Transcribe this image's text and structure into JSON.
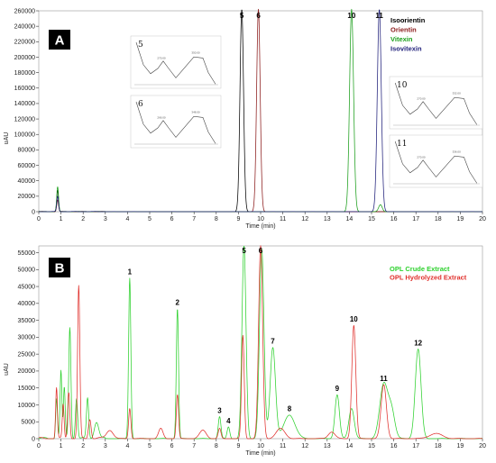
{
  "chart_data": [
    {
      "panel": "A",
      "type": "line",
      "xlabel": "Time (min)",
      "ylabel": "uAU",
      "xlim": [
        0,
        20
      ],
      "ylim": [
        0,
        260000
      ],
      "xticks": [
        "0",
        "1",
        "2",
        "3",
        "4",
        "5",
        "6",
        "7",
        "8",
        "9",
        "10",
        "11",
        "12",
        "13",
        "14",
        "15",
        "16",
        "17",
        "18",
        "19",
        "20"
      ],
      "yticks": [
        "0",
        "20000",
        "40000",
        "60000",
        "80000",
        "100000",
        "120000",
        "140000",
        "160000",
        "180000",
        "200000",
        "220000",
        "240000",
        "260000"
      ],
      "legend": [
        {
          "name": "Isoorientin",
          "color": "#000000"
        },
        {
          "name": "Orientin",
          "color": "#8b1a1a"
        },
        {
          "name": "Vitexin",
          "color": "#1a9e1a"
        },
        {
          "name": "Isovitexin",
          "color": "#1f1f7a"
        }
      ],
      "series": [
        {
          "name": "Isoorientin",
          "color": "#000000",
          "peaks": [
            {
              "x": 0.85,
              "y": 28000,
              "w": 0.04
            },
            {
              "x": 9.15,
              "y": 262000,
              "w": 0.08
            }
          ]
        },
        {
          "name": "Orientin",
          "color": "#8b1a1a",
          "peaks": [
            {
              "x": 0.85,
              "y": 15000,
              "w": 0.04
            },
            {
              "x": 9.9,
              "y": 262000,
              "w": 0.08
            }
          ]
        },
        {
          "name": "Vitexin",
          "color": "#1a9e1a",
          "peaks": [
            {
              "x": 0.85,
              "y": 32000,
              "w": 0.04
            },
            {
              "x": 14.1,
              "y": 262000,
              "w": 0.09
            },
            {
              "x": 15.4,
              "y": 9000,
              "w": 0.08
            }
          ]
        },
        {
          "name": "Isovitexin",
          "color": "#1f1f7a",
          "peaks": [
            {
              "x": 0.85,
              "y": 20000,
              "w": 0.04
            },
            {
              "x": 15.35,
              "y": 262000,
              "w": 0.09
            }
          ]
        }
      ],
      "peak_labels": [
        {
          "text": "5",
          "x": 9.15,
          "y": 262000
        },
        {
          "text": "6",
          "x": 9.9,
          "y": 262000
        },
        {
          "text": "10",
          "x": 14.1,
          "y": 262000
        },
        {
          "text": "11",
          "x": 15.35,
          "y": 262000
        }
      ],
      "insets": [
        {
          "label": "5",
          "tick_a": "270.00",
          "tick_b": "350.00"
        },
        {
          "label": "6",
          "tick_a": "266.00",
          "tick_b": "348.00"
        },
        {
          "label": "10",
          "tick_a": "270.00",
          "tick_b": "332.00"
        },
        {
          "label": "11",
          "tick_a": "270.00",
          "tick_b": "336.00"
        }
      ]
    },
    {
      "panel": "B",
      "type": "line",
      "xlabel": "Time (min)",
      "ylabel": "uAU",
      "xlim": [
        0,
        20
      ],
      "ylim": [
        0,
        57000
      ],
      "xticks": [
        "0",
        "1",
        "2",
        "3",
        "4",
        "5",
        "6",
        "7",
        "8",
        "9",
        "10",
        "11",
        "12",
        "13",
        "14",
        "15",
        "16",
        "17",
        "18",
        "19",
        "20"
      ],
      "yticks": [
        "0",
        "5000",
        "10000",
        "15000",
        "20000",
        "25000",
        "30000",
        "35000",
        "40000",
        "45000",
        "50000",
        "55000"
      ],
      "legend": [
        {
          "name": "OPL Crude Extract",
          "color": "#2ed12e"
        },
        {
          "name": "OPL Hydrolyzed Extract",
          "color": "#e0302c"
        }
      ],
      "series": [
        {
          "name": "OPL Crude Extract",
          "color": "#2ed12e",
          "peaks": [
            {
              "x": 0.8,
              "y": 12000,
              "w": 0.04
            },
            {
              "x": 1.0,
              "y": 20000,
              "w": 0.04
            },
            {
              "x": 1.15,
              "y": 15000,
              "w": 0.04
            },
            {
              "x": 1.4,
              "y": 33000,
              "w": 0.05
            },
            {
              "x": 1.7,
              "y": 12000,
              "w": 0.05
            },
            {
              "x": 2.2,
              "y": 12000,
              "w": 0.05
            },
            {
              "x": 2.6,
              "y": 5000,
              "w": 0.1
            },
            {
              "x": 4.1,
              "y": 47500,
              "w": 0.05
            },
            {
              "x": 6.25,
              "y": 38500,
              "w": 0.05
            },
            {
              "x": 8.15,
              "y": 6500,
              "w": 0.06
            },
            {
              "x": 8.55,
              "y": 3500,
              "w": 0.06
            },
            {
              "x": 9.25,
              "y": 57000,
              "w": 0.09
            },
            {
              "x": 10.05,
              "y": 56000,
              "w": 0.1
            },
            {
              "x": 10.55,
              "y": 27000,
              "w": 0.12
            },
            {
              "x": 11.3,
              "y": 7000,
              "w": 0.25
            },
            {
              "x": 13.45,
              "y": 13000,
              "w": 0.1
            },
            {
              "x": 14.1,
              "y": 9000,
              "w": 0.12
            },
            {
              "x": 15.55,
              "y": 16000,
              "w": 0.18
            },
            {
              "x": 15.9,
              "y": 8000,
              "w": 0.15
            },
            {
              "x": 17.1,
              "y": 26500,
              "w": 0.13
            }
          ]
        },
        {
          "name": "OPL Hydrolyzed Extract",
          "color": "#e0302c",
          "peaks": [
            {
              "x": 0.8,
              "y": 15000,
              "w": 0.04
            },
            {
              "x": 1.1,
              "y": 10000,
              "w": 0.04
            },
            {
              "x": 1.35,
              "y": 14000,
              "w": 0.05
            },
            {
              "x": 1.8,
              "y": 45000,
              "w": 0.05
            },
            {
              "x": 2.3,
              "y": 6000,
              "w": 0.06
            },
            {
              "x": 3.2,
              "y": 2500,
              "w": 0.15
            },
            {
              "x": 4.1,
              "y": 9000,
              "w": 0.05
            },
            {
              "x": 5.5,
              "y": 3000,
              "w": 0.1
            },
            {
              "x": 6.25,
              "y": 13000,
              "w": 0.05
            },
            {
              "x": 7.4,
              "y": 2500,
              "w": 0.15
            },
            {
              "x": 8.15,
              "y": 3000,
              "w": 0.06
            },
            {
              "x": 9.2,
              "y": 30500,
              "w": 0.06
            },
            {
              "x": 10.0,
              "y": 57000,
              "w": 0.09
            },
            {
              "x": 10.9,
              "y": 3000,
              "w": 0.2
            },
            {
              "x": 13.2,
              "y": 2000,
              "w": 0.15
            },
            {
              "x": 14.2,
              "y": 33500,
              "w": 0.09
            },
            {
              "x": 15.55,
              "y": 16000,
              "w": 0.12
            },
            {
              "x": 17.9,
              "y": 1500,
              "w": 0.3
            }
          ]
        }
      ],
      "peak_labels": [
        {
          "text": "1",
          "x": 4.1,
          "y": 47500
        },
        {
          "text": "2",
          "x": 6.25,
          "y": 38500
        },
        {
          "text": "3",
          "x": 8.15,
          "y": 6500
        },
        {
          "text": "4",
          "x": 8.55,
          "y": 3500
        },
        {
          "text": "5",
          "x": 9.25,
          "y": 57000
        },
        {
          "text": "6",
          "x": 10.0,
          "y": 57000
        },
        {
          "text": "7",
          "x": 10.55,
          "y": 27000
        },
        {
          "text": "8",
          "x": 11.3,
          "y": 7000
        },
        {
          "text": "9",
          "x": 13.45,
          "y": 13000
        },
        {
          "text": "10",
          "x": 14.2,
          "y": 33500
        },
        {
          "text": "11",
          "x": 15.55,
          "y": 16000
        },
        {
          "text": "12",
          "x": 17.1,
          "y": 26500
        }
      ]
    }
  ]
}
